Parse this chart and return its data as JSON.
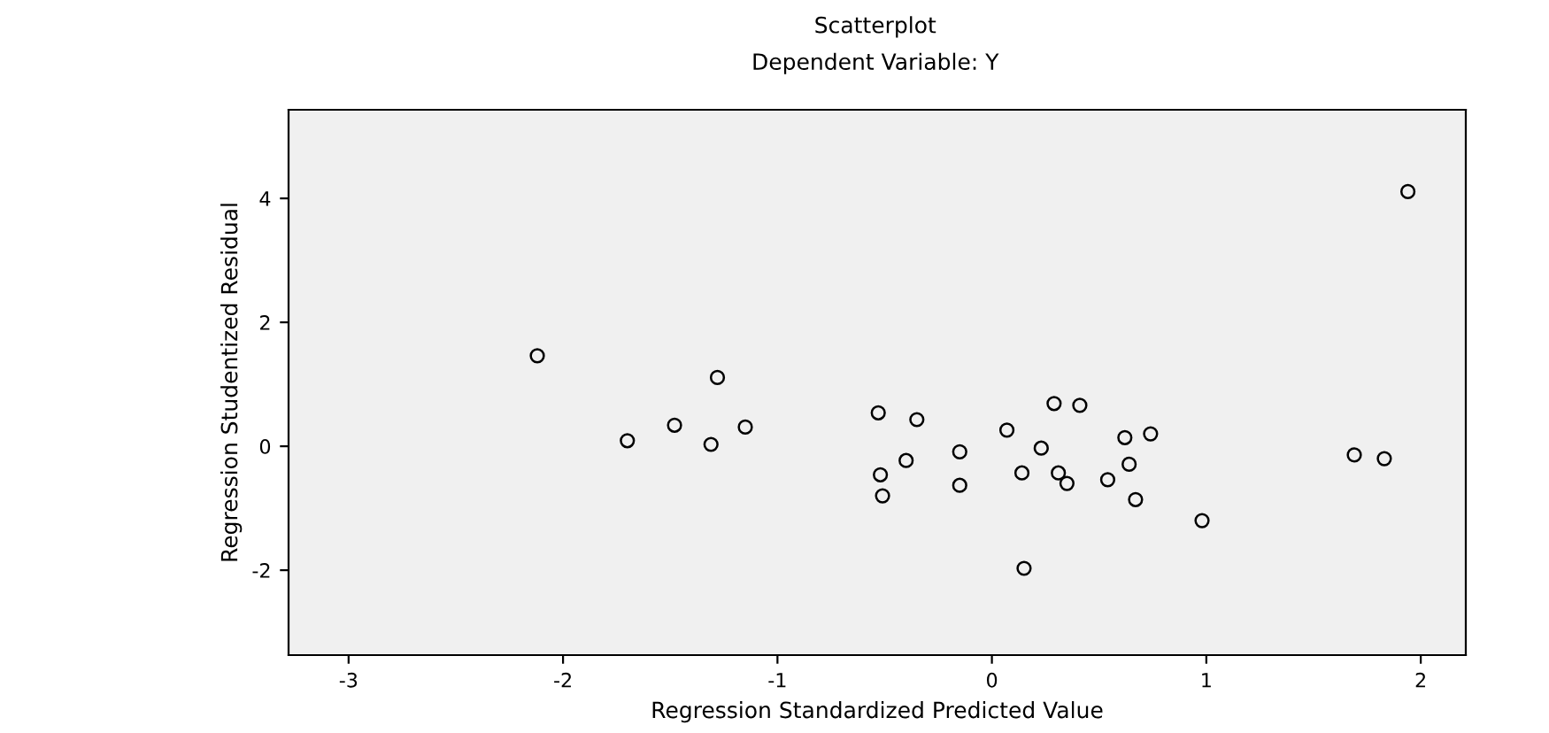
{
  "chart_data": {
    "type": "scatter",
    "title": "Scatterplot",
    "subtitle": "Dependent Variable: Y",
    "xlabel": "Regression Standardized Predicted Value",
    "ylabel": "Regression Studentized Residual",
    "xlim": [
      -3.28,
      2.21
    ],
    "ylim": [
      -3.37,
      5.43
    ],
    "xticks": [
      -3,
      -2,
      -1,
      0,
      1,
      2
    ],
    "yticks": [
      -2,
      0,
      2,
      4
    ],
    "grid": false,
    "marker": "circle",
    "series": [
      {
        "color": "#000000",
        "x": [
          -2.12,
          -1.7,
          -1.48,
          -1.31,
          -1.28,
          -1.15,
          -0.53,
          -0.35,
          -0.4,
          -0.52,
          -0.51,
          -0.15,
          -0.15,
          0.07,
          0.29,
          0.41,
          0.23,
          0.14,
          0.31,
          0.35,
          0.54,
          0.62,
          0.74,
          0.64,
          0.67,
          0.98,
          0.15,
          1.69,
          1.83,
          1.94
        ],
        "values": [
          1.46,
          0.09,
          0.34,
          0.03,
          1.11,
          0.31,
          0.54,
          0.43,
          -0.23,
          -0.46,
          -0.8,
          -0.09,
          -0.63,
          0.26,
          0.69,
          0.66,
          -0.03,
          -0.43,
          -0.43,
          -0.6,
          -0.54,
          0.14,
          0.2,
          -0.29,
          -0.86,
          -1.2,
          -1.97,
          -0.14,
          -0.2,
          4.11
        ]
      }
    ]
  }
}
